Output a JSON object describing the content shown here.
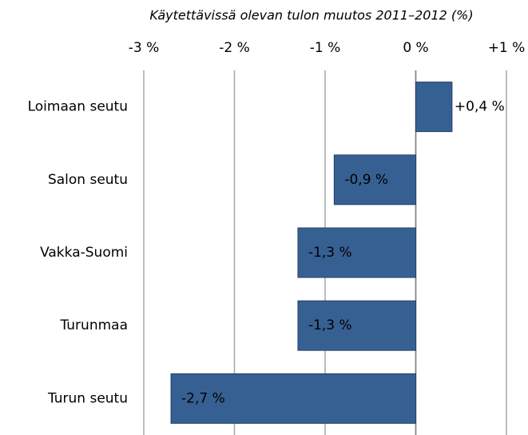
{
  "chart_data": {
    "type": "hbar",
    "title": "Käytettävissä olevan tulon muutos 2011–2012 (%)",
    "categories": [
      "Loimaan seutu",
      "Salon seutu",
      "Vakka-Suomi",
      "Turunmaa",
      "Turun seutu"
    ],
    "values": [
      0.4,
      -0.9,
      -1.3,
      -1.3,
      -2.7
    ],
    "value_labels": [
      "+0,4 %",
      "-0,9 %",
      "-1,3 %",
      "-1,3 %",
      "-2,7 %"
    ],
    "color": "#376092",
    "xlim": [
      -3,
      1
    ],
    "xticks": [
      {
        "value": -3,
        "label": "-3 %"
      },
      {
        "value": -2,
        "label": "-2 %"
      },
      {
        "value": -1,
        "label": "-1 %"
      },
      {
        "value": 0,
        "label": "0 %"
      },
      {
        "value": 1,
        "label": "+1 %"
      }
    ],
    "grid": true
  }
}
